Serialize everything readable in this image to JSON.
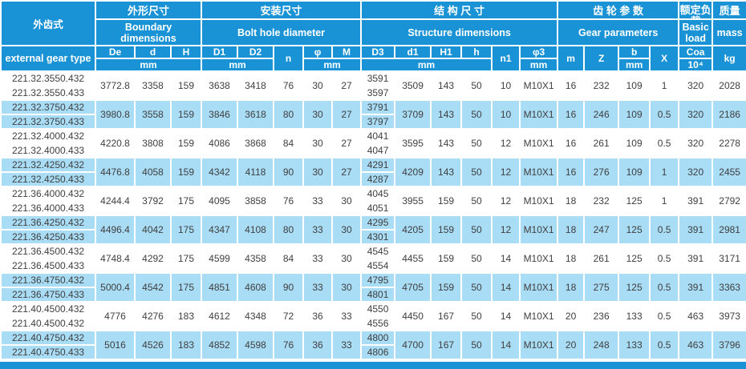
{
  "header": {
    "model": {
      "zh": "外齿式",
      "en": "external gear type"
    },
    "groups": [
      {
        "zh": "外形尺寸",
        "en": "Boundary dimensions"
      },
      {
        "zh": "安装尺寸",
        "en": "Bolt hole diameter"
      },
      {
        "zh": "结 构 尺 寸",
        "en": "Structure dimensions"
      },
      {
        "zh": "齿 轮 参 数",
        "en": "Gear parameters"
      },
      {
        "zh": "额定负载",
        "en": "Basic load"
      },
      {
        "zh": "质量",
        "en": "mass"
      }
    ],
    "cols": {
      "De": "De",
      "d": "d",
      "H": "H",
      "D1": "D1",
      "D2": "D2",
      "n": "n",
      "phi": "φ",
      "M": "M",
      "D3": "D3",
      "d1": "d1",
      "H1": "H1",
      "h": "h",
      "n1": "n1",
      "phi3": "φ3",
      "m": "m",
      "Z": "Z",
      "b": "b",
      "X": "X"
    },
    "unit_mm": "mm",
    "load_label": "Coa",
    "load_exp": "10⁴",
    "mass_unit": "kg"
  },
  "colors": {
    "header_blue": "#1a93d6",
    "row_highlight": "#a9dcf5",
    "row_plain": "#ffffff",
    "text": "#3f3f3f"
  },
  "table": {
    "rows": [
      {
        "models": [
          "221.32.3550.432",
          "221.32.3550.433"
        ],
        "De": "3772.8",
        "d": "3358",
        "H": "159",
        "D1": "3638",
        "D2": "3418",
        "n": "76",
        "phi": "30",
        "M": "27",
        "D3": [
          "3591",
          "3597"
        ],
        "d1": "3509",
        "H1": "143",
        "h": "50",
        "n1": "10",
        "phi3": "M10X1",
        "m": "16",
        "Z": "232",
        "b": "109",
        "X": "1",
        "Coa": "320",
        "mass": "2028"
      },
      {
        "models": [
          "221.32.3750.432",
          "221.32.3750.433"
        ],
        "De": "3980.8",
        "d": "3558",
        "H": "159",
        "D1": "3846",
        "D2": "3618",
        "n": "80",
        "phi": "30",
        "M": "27",
        "D3": [
          "3791",
          "3797"
        ],
        "d1": "3709",
        "H1": "143",
        "h": "50",
        "n1": "10",
        "phi3": "M10X1",
        "m": "16",
        "Z": "246",
        "b": "109",
        "X": "0.5",
        "Coa": "320",
        "mass": "2186"
      },
      {
        "models": [
          "221.32.4000.432",
          "221.32.4000.433"
        ],
        "De": "4220.8",
        "d": "3808",
        "H": "159",
        "D1": "4086",
        "D2": "3868",
        "n": "84",
        "phi": "30",
        "M": "27",
        "D3": [
          "4041",
          "4047"
        ],
        "d1": "3595",
        "H1": "143",
        "h": "50",
        "n1": "12",
        "phi3": "M10X1",
        "m": "16",
        "Z": "261",
        "b": "109",
        "X": "0.5",
        "Coa": "320",
        "mass": "2278"
      },
      {
        "models": [
          "221.32.4250.432",
          "221.32.4250.433"
        ],
        "De": "4476.8",
        "d": "4058",
        "H": "159",
        "D1": "4342",
        "D2": "4118",
        "n": "90",
        "phi": "30",
        "M": "27",
        "D3": [
          "4291",
          "4287"
        ],
        "d1": "4209",
        "H1": "143",
        "h": "50",
        "n1": "12",
        "phi3": "M10X1",
        "m": "16",
        "Z": "276",
        "b": "109",
        "X": "1",
        "Coa": "320",
        "mass": "2455"
      },
      {
        "models": [
          "221.36.4000.432",
          "221.36.4000.433"
        ],
        "De": "4244.4",
        "d": "3792",
        "H": "175",
        "D1": "4095",
        "D2": "3858",
        "n": "76",
        "phi": "33",
        "M": "30",
        "D3": [
          "4045",
          "4051"
        ],
        "d1": "3955",
        "H1": "159",
        "h": "50",
        "n1": "12",
        "phi3": "M10X1",
        "m": "18",
        "Z": "232",
        "b": "125",
        "X": "1",
        "Coa": "391",
        "mass": "2792"
      },
      {
        "models": [
          "221.36.4250.432",
          "221.36.4250.433"
        ],
        "De": "4496.4",
        "d": "4042",
        "H": "175",
        "D1": "4347",
        "D2": "4108",
        "n": "80",
        "phi": "33",
        "M": "30",
        "D3": [
          "4295",
          "4301"
        ],
        "d1": "4205",
        "H1": "159",
        "h": "50",
        "n1": "12",
        "phi3": "M10X1",
        "m": "18",
        "Z": "247",
        "b": "125",
        "X": "0.5",
        "Coa": "391",
        "mass": "2981"
      },
      {
        "models": [
          "221.36.4500.432",
          "221.36.4500.433"
        ],
        "De": "4748.4",
        "d": "4292",
        "H": "175",
        "D1": "4599",
        "D2": "4358",
        "n": "84",
        "phi": "33",
        "M": "30",
        "D3": [
          "4545",
          "4554"
        ],
        "d1": "4455",
        "H1": "159",
        "h": "50",
        "n1": "14",
        "phi3": "M10X1",
        "m": "18",
        "Z": "261",
        "b": "125",
        "X": "0.5",
        "Coa": "391",
        "mass": "3171"
      },
      {
        "models": [
          "221.36.4750.432",
          "221.36.4750.433"
        ],
        "De": "5000.4",
        "d": "4542",
        "H": "175",
        "D1": "4851",
        "D2": "4608",
        "n": "90",
        "phi": "33",
        "M": "30",
        "D3": [
          "4795",
          "4801"
        ],
        "d1": "4705",
        "H1": "159",
        "h": "50",
        "n1": "14",
        "phi3": "M10X1",
        "m": "18",
        "Z": "275",
        "b": "125",
        "X": "0.5",
        "Coa": "391",
        "mass": "3363"
      },
      {
        "models": [
          "221.40.4500.432",
          "221.40.4500.432"
        ],
        "De": "4776",
        "d": "4276",
        "H": "183",
        "D1": "4612",
        "D2": "4348",
        "n": "72",
        "phi": "36",
        "M": "33",
        "D3": [
          "4550",
          "4556"
        ],
        "d1": "4450",
        "H1": "167",
        "h": "50",
        "n1": "14",
        "phi3": "M10X1",
        "m": "20",
        "Z": "236",
        "b": "133",
        "X": "0.5",
        "Coa": "463",
        "mass": "3973"
      },
      {
        "models": [
          "221.40.4750.432",
          "221.40.4750.433"
        ],
        "De": "5016",
        "d": "4526",
        "H": "183",
        "D1": "4852",
        "D2": "4598",
        "n": "76",
        "phi": "36",
        "M": "33",
        "D3": [
          "4800",
          "4806"
        ],
        "d1": "4700",
        "H1": "167",
        "h": "50",
        "n1": "14",
        "phi3": "M10X1",
        "m": "20",
        "Z": "248",
        "b": "133",
        "X": "0.5",
        "Coa": "463",
        "mass": "3796"
      }
    ]
  }
}
